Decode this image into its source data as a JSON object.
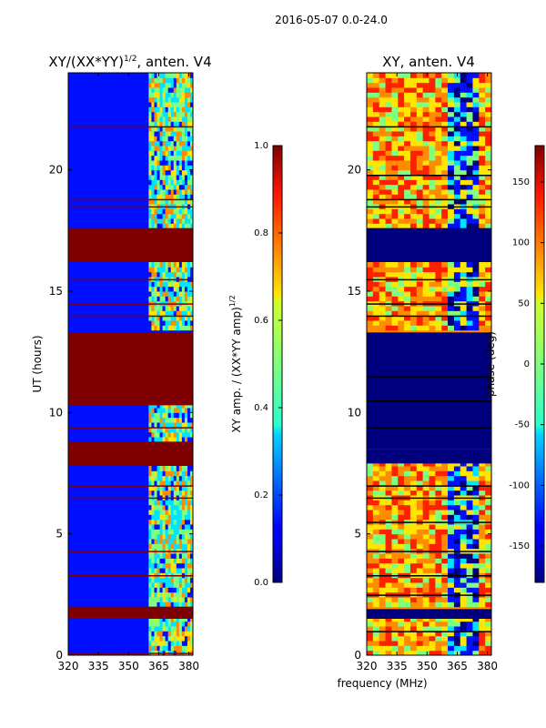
{
  "figure_title": "2016-05-07 0.0-24.0",
  "shared_xlabel": "frequency (MHz)",
  "colors": {
    "maroon": "#7f0000",
    "dark_blue": "#00007f",
    "blue": "#0010ff",
    "cyan": "#00e5ff",
    "green": "#7fff7f",
    "yellow": "#ffe600",
    "orange": "#ff8c00",
    "red": "#ff2000"
  },
  "chart_data": [
    {
      "type": "heatmap",
      "title": "XY/(XX*YY)",
      "title_superscript": "1/2",
      "title_suffix": ", anten. V4",
      "xlabel": "",
      "ylabel": "UT (hours)",
      "xlim": [
        320,
        382
      ],
      "ylim": [
        0,
        24
      ],
      "xticks": [
        "320",
        "335",
        "350",
        "365",
        "380"
      ],
      "yticks": [
        "0",
        "5",
        "10",
        "15",
        "20"
      ],
      "colorbar": {
        "label": "XY amp. / (XX*YY amp)",
        "label_superscript": "1/2",
        "range": [
          0.0,
          1.0
        ],
        "ticks": [
          "0.0",
          "0.2",
          "0.4",
          "0.6",
          "0.8",
          "1.0"
        ],
        "colormap": "jet"
      },
      "flagged_time_ranges_hours": [
        [
          1.5,
          2.0
        ],
        [
          7.8,
          8.8
        ],
        [
          10.3,
          13.3
        ],
        [
          16.2,
          17.6
        ]
      ],
      "band_edge_mhz": 360,
      "description_low_band_value": 0.1,
      "description_high_band_value": 0.6
    },
    {
      "type": "heatmap",
      "title": "XY, anten. V4",
      "xlabel": "",
      "ylabel": "",
      "xlim": [
        320,
        382
      ],
      "ylim": [
        0,
        24
      ],
      "xticks": [
        "320",
        "335",
        "350",
        "365",
        "380"
      ],
      "yticks": [
        "0",
        "5",
        "10",
        "15",
        "20"
      ],
      "colorbar": {
        "label": "phase (deg)",
        "range": [
          -180,
          180
        ],
        "ticks": [
          "-150",
          "-100",
          "-50",
          "0",
          "50",
          "100",
          "150"
        ],
        "colormap": "jet"
      },
      "flagged_time_ranges_hours": [
        [
          1.5,
          1.9
        ],
        [
          7.9,
          8.5
        ],
        [
          8.5,
          13.3
        ],
        [
          16.2,
          17.6
        ]
      ]
    }
  ]
}
